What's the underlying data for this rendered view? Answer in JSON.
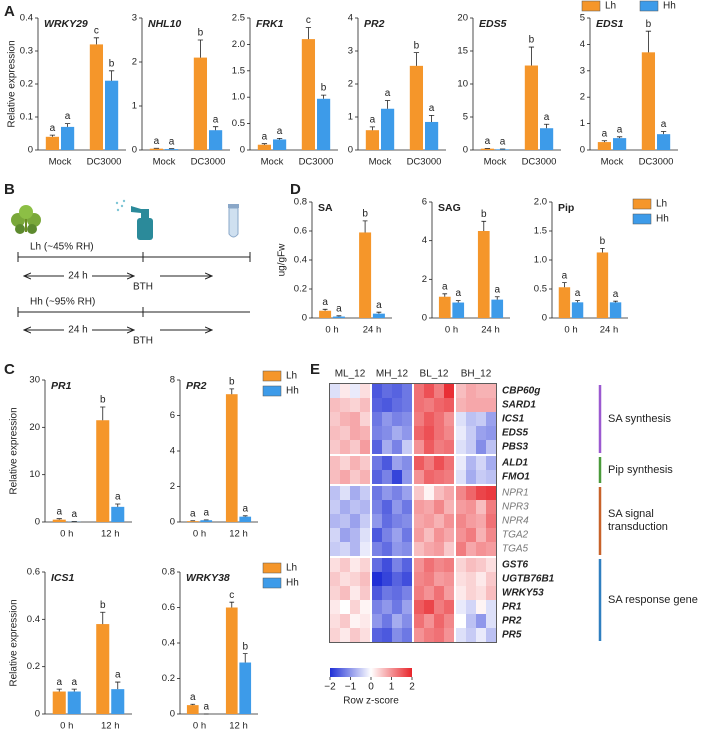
{
  "panel_labels": [
    "A",
    "B",
    "C",
    "D",
    "E"
  ],
  "schematic": {
    "rows": [
      {
        "label": "Lh (~45% RH)",
        "duration": "24 h",
        "treatment": "BTH"
      },
      {
        "label": "Hh (~95% RH)",
        "duration": "24 h",
        "treatment": "BTH"
      }
    ]
  },
  "chart_data": [
    {
      "type": "bar",
      "title": "WRKY29",
      "ylabel": "Relative expression",
      "categories": [
        "Mock",
        "DC3000"
      ],
      "ylim": [
        0,
        0.4
      ],
      "yticks": [
        0,
        0.1,
        0.2,
        0.3,
        0.4
      ],
      "series": [
        {
          "color": "#f5962a",
          "values": [
            0.04,
            0.32
          ],
          "errors": [
            0.005,
            0.02
          ],
          "letters": [
            "a",
            "c"
          ]
        },
        {
          "color": "#3d9be9",
          "values": [
            0.07,
            0.21
          ],
          "errors": [
            0.01,
            0.03
          ],
          "letters": [
            "a",
            "b"
          ]
        }
      ]
    },
    {
      "type": "bar",
      "title": "NHL10",
      "categories": [
        "Mock",
        "DC3000"
      ],
      "ylim": [
        0,
        3
      ],
      "yticks": [
        0,
        1,
        2,
        3
      ],
      "series": [
        {
          "color": "#f5962a",
          "values": [
            0.03,
            2.1
          ],
          "errors": [
            0.01,
            0.4
          ],
          "letters": [
            "a",
            "b"
          ]
        },
        {
          "color": "#3d9be9",
          "values": [
            0.02,
            0.45
          ],
          "errors": [
            0.01,
            0.08
          ],
          "letters": [
            "a",
            "a"
          ]
        }
      ]
    },
    {
      "type": "bar",
      "title": "FRK1",
      "categories": [
        "Mock",
        "DC3000"
      ],
      "ylim": [
        0,
        2.5
      ],
      "yticks": [
        0,
        0.5,
        {
          "value": 1,
          "label": "1.0"
        },
        1.5,
        {
          "value": 2,
          "label": "2.0"
        },
        2.5
      ],
      "series": [
        {
          "color": "#f5962a",
          "values": [
            0.1,
            2.1
          ],
          "errors": [
            0.02,
            0.22
          ],
          "letters": [
            "a",
            "c"
          ]
        },
        {
          "color": "#3d9be9",
          "values": [
            0.2,
            0.97
          ],
          "errors": [
            0.02,
            0.07
          ],
          "letters": [
            "a",
            "b"
          ]
        }
      ]
    },
    {
      "type": "bar",
      "title": "PR2",
      "categories": [
        "Mock",
        "DC3000"
      ],
      "ylim": [
        0,
        4
      ],
      "yticks": [
        0,
        1,
        2,
        3,
        4
      ],
      "series": [
        {
          "color": "#f5962a",
          "values": [
            0.6,
            2.55
          ],
          "errors": [
            0.1,
            0.4
          ],
          "letters": [
            "a",
            "b"
          ]
        },
        {
          "color": "#3d9be9",
          "values": [
            1.25,
            0.85
          ],
          "errors": [
            0.25,
            0.2
          ],
          "letters": [
            "a",
            "a"
          ]
        }
      ]
    },
    {
      "type": "bar",
      "title": "EDS5",
      "categories": [
        "Mock",
        "DC3000"
      ],
      "ylim": [
        0,
        20
      ],
      "yticks": [
        0,
        5,
        10,
        15,
        20
      ],
      "series": [
        {
          "color": "#f5962a",
          "values": [
            0.2,
            12.8
          ],
          "errors": [
            0.05,
            2.8
          ],
          "letters": [
            "a",
            "b"
          ]
        },
        {
          "color": "#3d9be9",
          "values": [
            0.1,
            3.3
          ],
          "errors": [
            0.05,
            0.6
          ],
          "letters": [
            "a",
            "a"
          ]
        }
      ]
    },
    {
      "type": "bar",
      "title": "EDS1",
      "categories": [
        "Mock",
        "DC3000"
      ],
      "ylim": [
        0,
        5
      ],
      "yticks": [
        0,
        1,
        2,
        3,
        4,
        5
      ],
      "legend": "top-right",
      "series": [
        {
          "name": "Lh",
          "color": "#f5962a",
          "values": [
            0.3,
            3.7
          ],
          "errors": [
            0.05,
            0.8
          ],
          "letters": [
            "a",
            "b"
          ]
        },
        {
          "name": "Hh",
          "color": "#3d9be9",
          "values": [
            0.45,
            0.6
          ],
          "errors": [
            0.05,
            0.1
          ],
          "letters": [
            "a",
            "a"
          ]
        }
      ]
    },
    {
      "type": "bar",
      "title": "PR1",
      "ylabel": "Relative expression",
      "categories": [
        "0 h",
        "12 h"
      ],
      "ylim": [
        0,
        30
      ],
      "yticks": [
        0,
        10,
        20,
        30
      ],
      "series": [
        {
          "color": "#f5962a",
          "values": [
            0.5,
            21.5
          ],
          "errors": [
            0.2,
            2.8
          ],
          "letters": [
            "a",
            "b"
          ]
        },
        {
          "color": "#3d9be9",
          "values": [
            0.05,
            3.2
          ],
          "errors": [
            0.05,
            0.6
          ],
          "letters": [
            "a",
            "a"
          ]
        }
      ]
    },
    {
      "type": "bar",
      "title": "PR2",
      "categories": [
        "0 h",
        "12 h"
      ],
      "ylim": [
        0,
        8
      ],
      "yticks": [
        0,
        2,
        4,
        6,
        8
      ],
      "legend": "top-right",
      "series": [
        {
          "name": "Lh",
          "color": "#f5962a",
          "values": [
            0.05,
            7.2
          ],
          "errors": [
            0.02,
            0.3
          ],
          "letters": [
            "a",
            "b"
          ]
        },
        {
          "name": "Hh",
          "color": "#3d9be9",
          "values": [
            0.1,
            0.3
          ],
          "errors": [
            0.02,
            0.05
          ],
          "letters": [
            "a",
            "a"
          ]
        }
      ]
    },
    {
      "type": "bar",
      "title": "ICS1",
      "ylabel": "Relative expression",
      "categories": [
        "0 h",
        "12 h"
      ],
      "ylim": [
        0,
        0.6
      ],
      "yticks": [
        0,
        0.2,
        0.4,
        0.6
      ],
      "series": [
        {
          "color": "#f5962a",
          "values": [
            0.095,
            0.38
          ],
          "errors": [
            0.01,
            0.05
          ],
          "letters": [
            "a",
            "b"
          ]
        },
        {
          "color": "#3d9be9",
          "values": [
            0.095,
            0.105
          ],
          "errors": [
            0.01,
            0.03
          ],
          "letters": [
            "a",
            "a"
          ]
        }
      ]
    },
    {
      "type": "bar",
      "title": "WRKY38",
      "categories": [
        "0 h",
        "12 h"
      ],
      "ylim": [
        0,
        0.8
      ],
      "yticks": [
        0,
        0.2,
        0.4,
        0.6,
        0.8
      ],
      "legend": "top-right",
      "series": [
        {
          "name": "Lh",
          "color": "#f5962a",
          "values": [
            0.05,
            0.6
          ],
          "errors": [
            0.005,
            0.03
          ],
          "letters": [
            "a",
            "c"
          ]
        },
        {
          "name": "Hh",
          "color": "#3d9be9",
          "values": [
            0,
            0.29
          ],
          "errors": [
            0,
            0.05
          ],
          "letters": [
            "a",
            "b"
          ]
        }
      ]
    },
    {
      "type": "bar",
      "title": "SA",
      "ylabel": "ug/gFw",
      "categories": [
        "0 h",
        "24 h"
      ],
      "ylim": [
        0,
        0.8
      ],
      "yticks": [
        0,
        0.2,
        0.4,
        0.6,
        0.8
      ],
      "series": [
        {
          "color": "#f5962a",
          "values": [
            0.05,
            0.59
          ],
          "errors": [
            0.01,
            0.08
          ],
          "letters": [
            "a",
            "b"
          ]
        },
        {
          "color": "#3d9be9",
          "values": [
            0.01,
            0.03
          ],
          "errors": [
            0.005,
            0.01
          ],
          "letters": [
            "a",
            "a"
          ]
        }
      ]
    },
    {
      "type": "bar",
      "title": "SAG",
      "categories": [
        "0 h",
        "24 h"
      ],
      "ylim": [
        0,
        6
      ],
      "yticks": [
        0,
        2,
        4,
        6
      ],
      "series": [
        {
          "color": "#f5962a",
          "values": [
            1.1,
            4.5
          ],
          "errors": [
            0.15,
            0.5
          ],
          "letters": [
            "a",
            "b"
          ]
        },
        {
          "color": "#3d9be9",
          "values": [
            0.8,
            0.95
          ],
          "errors": [
            0.1,
            0.15
          ],
          "letters": [
            "a",
            "a"
          ]
        }
      ]
    },
    {
      "type": "bar",
      "title": "Pip",
      "categories": [
        "0 h",
        "24 h"
      ],
      "ylim": [
        0,
        2
      ],
      "yticks": [
        0,
        0.5,
        {
          "value": 1,
          "label": "1.0"
        },
        1.5,
        {
          "value": 2,
          "label": "2.0"
        }
      ],
      "legend": "top-right",
      "series": [
        {
          "name": "Lh",
          "color": "#f5962a",
          "values": [
            0.53,
            1.13
          ],
          "errors": [
            0.08,
            0.07
          ],
          "letters": [
            "a",
            "b"
          ]
        },
        {
          "name": "Hh",
          "color": "#3d9be9",
          "values": [
            0.27,
            0.27
          ],
          "errors": [
            0.03,
            0.02
          ],
          "letters": [
            "a",
            "a"
          ]
        }
      ]
    },
    {
      "type": "heatmap",
      "column_groups": [
        "ML_12",
        "MH_12",
        "BL_12",
        "BH_12"
      ],
      "rows": [
        "CBP60g",
        "SARD1",
        "ICS1",
        "EDS5",
        "PBS3",
        "ALD1",
        "FMO1",
        "NPR1",
        "NPR3",
        "NPR4",
        "TGA2",
        "TGA5",
        "GST6",
        "UGTB76B1",
        "WRKY53",
        "PR1",
        "PR2",
        "PR5"
      ],
      "row_groups": [
        {
          "name": "SA synthesis",
          "size": 5,
          "color": "#9b59d0"
        },
        {
          "name": "Pip synthesis",
          "size": 2,
          "color": "#4a9a3a"
        },
        {
          "name": "SA signal transduction",
          "size": 5,
          "color": "#c8622a"
        },
        {
          "name": "SA response gene",
          "size": 6,
          "color": "#2f7fc0"
        }
      ],
      "zlim": [
        -2,
        2
      ],
      "colors": [
        "#1f2fd6",
        "#ffffff",
        "#e8242a"
      ],
      "colorbar_ticks": [
        {
          "value": -2,
          "label": "−2"
        },
        {
          "value": -1,
          "label": "−1"
        },
        0,
        1,
        2
      ],
      "colorbar_label": "Row z-score",
      "values": [
        [
          -0.3,
          0.2,
          -0.2,
          0.3,
          -1.6,
          -1.4,
          -1.5,
          -1.3,
          1.3,
          1.6,
          1.2,
          1.9,
          0.6,
          0.8,
          0.7,
          0.7
        ],
        [
          0.6,
          0.5,
          0.4,
          0.6,
          -1.5,
          -1.6,
          -1.4,
          -1.3,
          1.3,
          1.2,
          1.4,
          1.5,
          0.7,
          0.8,
          0.8,
          0.8
        ],
        [
          0.5,
          0.7,
          0.8,
          0.4,
          -1.3,
          -1.0,
          -1.2,
          -1.1,
          1.2,
          1.5,
          1.3,
          1.0,
          -0.3,
          -0.6,
          -0.5,
          -0.9
        ],
        [
          0.6,
          0.5,
          0.8,
          0.7,
          -1.2,
          -1.1,
          -0.8,
          -1.0,
          1.4,
          1.6,
          1.3,
          1.1,
          -0.2,
          -0.5,
          -0.9,
          -1.0
        ],
        [
          0.5,
          0.7,
          0.5,
          0.9,
          -1.5,
          -0.8,
          -1.2,
          -0.5,
          1.0,
          1.5,
          1.2,
          1.3,
          -0.3,
          -0.5,
          -1.1,
          -0.6
        ],
        [
          0.6,
          0.4,
          0.7,
          0.5,
          -1.3,
          -1.6,
          -0.9,
          -1.1,
          1.5,
          1.2,
          1.6,
          1.3,
          -0.2,
          -0.7,
          -0.4,
          -0.8
        ],
        [
          0.6,
          0.8,
          0.5,
          0.7,
          -1.5,
          -1.2,
          -1.8,
          -1.0,
          1.0,
          1.4,
          1.3,
          1.2,
          -0.3,
          -0.8,
          -0.5,
          -0.6
        ],
        [
          -0.6,
          -0.3,
          -0.8,
          -0.5,
          -1.3,
          -1.0,
          -1.2,
          -0.9,
          0.5,
          0.1,
          0.6,
          0.8,
          1.1,
          1.4,
          1.7,
          1.8
        ],
        [
          -0.5,
          -0.8,
          -0.6,
          -0.7,
          -1.2,
          -1.5,
          -1.0,
          -1.3,
          0.9,
          0.8,
          1.1,
          0.7,
          0.9,
          1.0,
          0.6,
          1.2
        ],
        [
          -0.7,
          -0.6,
          -0.9,
          -0.5,
          -1.0,
          -1.4,
          -1.2,
          -1.1,
          0.8,
          0.9,
          0.7,
          1.0,
          1.1,
          0.9,
          0.8,
          1.3
        ],
        [
          -0.4,
          -0.9,
          -0.7,
          -0.3,
          -1.6,
          -1.2,
          -0.9,
          -1.3,
          0.9,
          0.6,
          1.0,
          0.8,
          1.0,
          1.2,
          0.7,
          1.1
        ],
        [
          -0.5,
          -0.4,
          -0.7,
          -0.2,
          -1.2,
          -1.4,
          -1.0,
          -1.1,
          0.6,
          0.8,
          0.9,
          0.5,
          1.2,
          0.8,
          1.0,
          0.9
        ],
        [
          0.3,
          0.5,
          0.2,
          0.4,
          -1.4,
          -1.7,
          -1.2,
          -1.5,
          1.0,
          1.3,
          1.1,
          1.2,
          0.4,
          0.6,
          0.5,
          0.3
        ],
        [
          0.5,
          0.3,
          0.4,
          0.6,
          -2.0,
          -1.8,
          -1.5,
          -1.7,
          1.1,
          1.2,
          0.9,
          1.0,
          0.3,
          0.4,
          0.2,
          0.5
        ],
        [
          0.4,
          0.6,
          0.2,
          0.5,
          -1.6,
          -1.3,
          -1.4,
          -1.2,
          1.2,
          1.0,
          1.3,
          0.9,
          0.2,
          0.4,
          0.3,
          0.6
        ],
        [
          0.2,
          0.0,
          0.4,
          0.1,
          -1.2,
          -1.0,
          -1.3,
          -0.9,
          1.5,
          1.7,
          1.2,
          1.4,
          -0.2,
          -0.4,
          0.1,
          -0.3
        ],
        [
          0.3,
          0.5,
          0.1,
          0.2,
          -1.0,
          -1.3,
          -0.8,
          -1.1,
          1.3,
          1.0,
          1.4,
          1.1,
          0.0,
          -0.6,
          -1.0,
          -0.3
        ],
        [
          0.4,
          0.2,
          0.5,
          0.3,
          -1.5,
          -1.6,
          -1.1,
          -1.3,
          1.0,
          1.2,
          1.3,
          1.0,
          -0.3,
          -0.5,
          -0.2,
          -0.6
        ]
      ]
    }
  ]
}
